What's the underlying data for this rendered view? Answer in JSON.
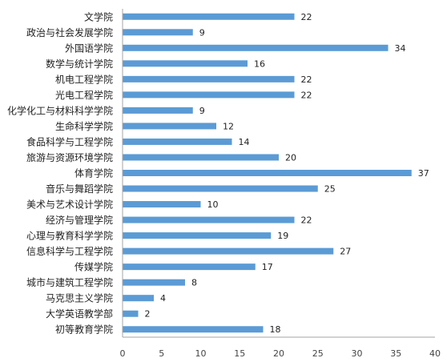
{
  "chart_data": {
    "type": "bar",
    "orientation": "horizontal",
    "categories": [
      "文学院",
      "政治与社会发展学院",
      "外国语学院",
      "数学与统计学院",
      "机电工程学院",
      "光电工程学院",
      "化学化工与材料科学学院",
      "生命科学学院",
      "食品科学与工程学院",
      "旅游与资源环境学院",
      "体育学院",
      "音乐与舞蹈学院",
      "美术与艺术设计学院",
      "经济与管理学院",
      "心理与教育科学学院",
      "信息科学与工程学院",
      "传媒学院",
      "城市与建筑工程学院",
      "马克思主义学院",
      "大学英语教学部",
      "初等教育学院"
    ],
    "values": [
      22,
      9,
      34,
      16,
      22,
      22,
      9,
      12,
      14,
      20,
      37,
      25,
      10,
      22,
      19,
      27,
      17,
      8,
      4,
      2,
      18
    ],
    "xlim": [
      0,
      40
    ],
    "xticks": [
      0,
      5,
      10,
      15,
      20,
      25,
      30,
      35,
      40
    ],
    "grid": false,
    "legend": "none",
    "bar_color": "#5b9bd5",
    "axis_color": "#a6a6a6",
    "data_labels": true
  }
}
